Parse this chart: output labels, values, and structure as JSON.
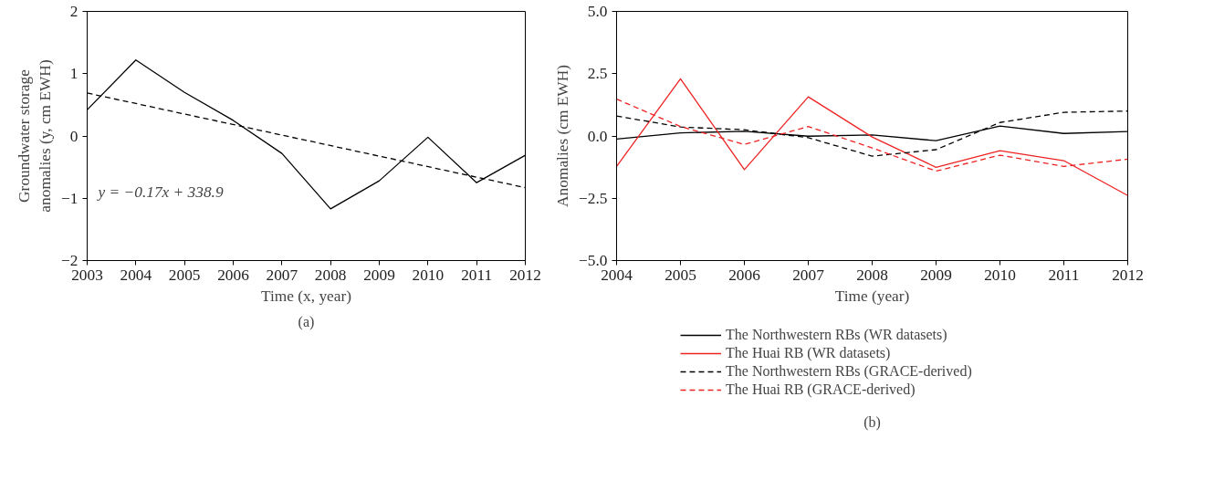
{
  "chart_data": [
    {
      "type": "line",
      "xlabel": "Time (x, year)",
      "ylabel": "Groundwater storage anomalies (y, cm EWH)",
      "xlim": [
        2003,
        2012
      ],
      "xticks": [
        2003,
        2004,
        2005,
        2006,
        2007,
        2008,
        2009,
        2010,
        2011,
        2012
      ],
      "ylim": [
        -2,
        2
      ],
      "yticks": [
        -2,
        -1,
        0,
        1,
        2
      ],
      "grid": false,
      "legend": false,
      "series": [
        {
          "color": "#000000",
          "line_style": "solid",
          "x": [
            2003,
            2004,
            2005,
            2006,
            2007,
            2008,
            2009,
            2010,
            2011,
            2012
          ],
          "values": [
            0.42,
            1.22,
            0.7,
            0.25,
            -0.28,
            -1.17,
            -0.72,
            -0.02,
            -0.75,
            -0.31
          ]
        },
        {
          "color": "#000000",
          "line_style": "dashed",
          "x": [
            2003,
            2012
          ],
          "values": [
            0.69,
            -0.83
          ]
        }
      ],
      "annotations": [
        "y = −0.17x + 338.9",
        "(a)"
      ]
    },
    {
      "type": "line",
      "xlabel": "Time (year)",
      "ylabel": "Anomalies (cm EWH)",
      "xlim": [
        2004,
        2012
      ],
      "xticks": [
        2004,
        2005,
        2006,
        2007,
        2008,
        2009,
        2010,
        2011,
        2012
      ],
      "ylim": [
        -5,
        5
      ],
      "yticks": [
        {
          "value": -5,
          "label": "−5.0"
        },
        {
          "value": -2.5,
          "label": "−2.5"
        },
        {
          "value": 0,
          "label": "0.0"
        },
        {
          "value": 2.5,
          "label": "2.5"
        },
        {
          "value": 5,
          "label": "5.0"
        }
      ],
      "grid": false,
      "legend": "bottom",
      "x": [
        2004,
        2005,
        2006,
        2007,
        2008,
        2009,
        2010,
        2011,
        2012
      ],
      "series": [
        {
          "name": "The Northwestern RBs (WR datasets)",
          "color": "#000000",
          "line_style": "solid",
          "values": [
            -0.12,
            0.12,
            0.19,
            -0.01,
            0.04,
            -0.19,
            0.4,
            0.1,
            0.18
          ]
        },
        {
          "name": "The Huai RB (WR datasets)",
          "color": "#ee2222",
          "line_style": "solid",
          "values": [
            -1.22,
            2.29,
            -1.35,
            1.57,
            -0.04,
            -1.26,
            -0.59,
            -0.99,
            -2.39
          ]
        },
        {
          "name": "The Northwestern RBs (GRACE-derived)",
          "color": "#000000",
          "line_style": "dashed",
          "values": [
            0.8,
            0.36,
            0.25,
            -0.07,
            -0.81,
            -0.55,
            0.54,
            0.95,
            1.0
          ]
        },
        {
          "name": "The Huai RB (GRACE-derived)",
          "color": "#ee2222",
          "line_style": "dashed",
          "values": [
            1.48,
            0.38,
            -0.34,
            0.38,
            -0.48,
            -1.41,
            -0.77,
            -1.22,
            -0.93
          ]
        }
      ],
      "annotations": [
        "(b)"
      ]
    }
  ]
}
